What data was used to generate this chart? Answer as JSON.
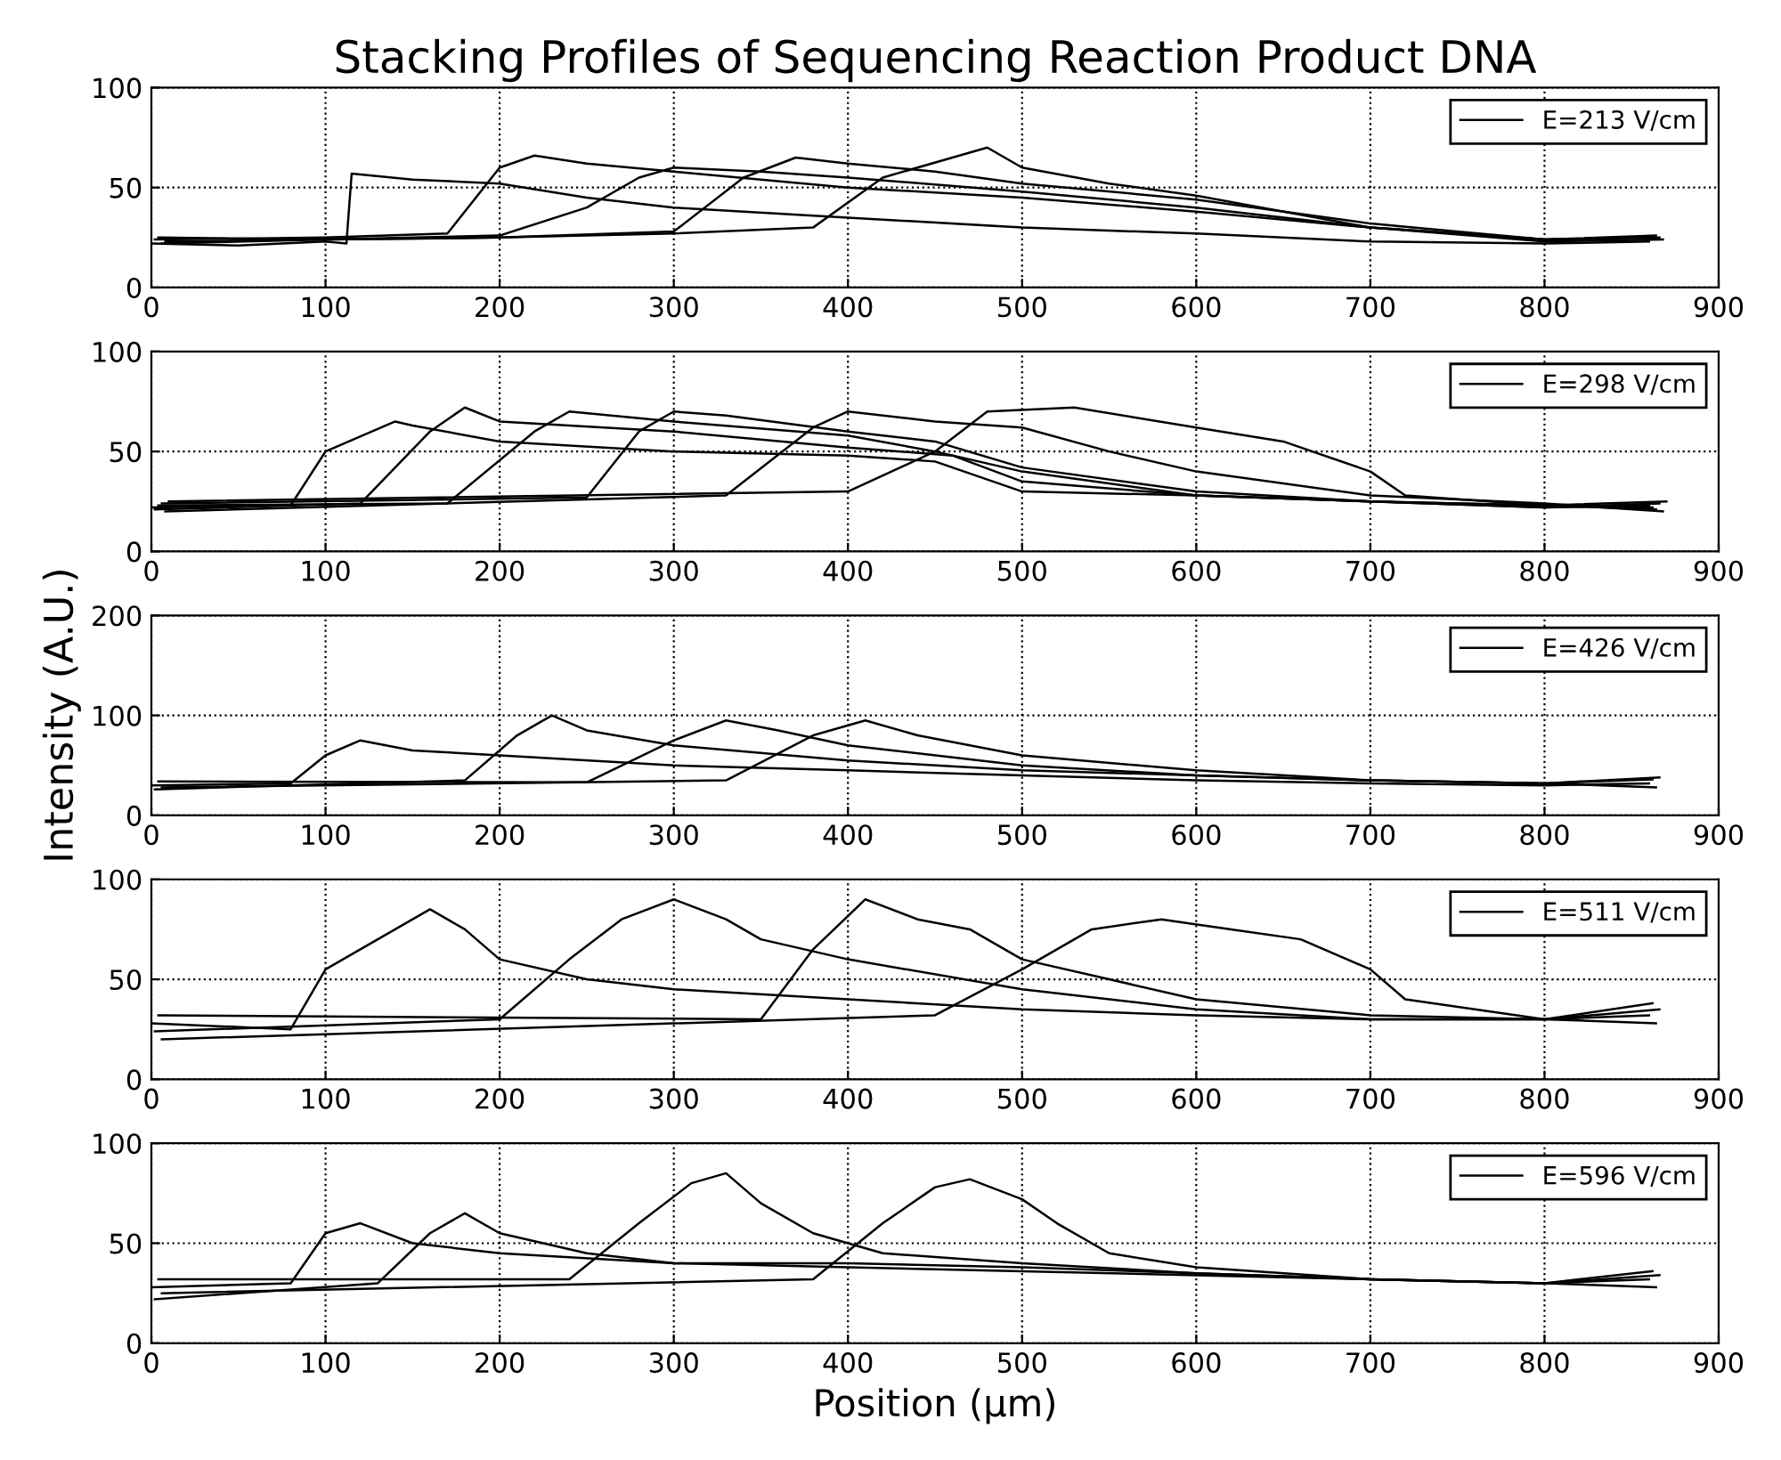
{
  "chart_data": [
    {
      "type": "line",
      "title": "Stacking Profiles of Sequencing Reaction Product DNA",
      "xlim": [
        0,
        900
      ],
      "xticks": [
        0,
        100,
        200,
        300,
        400,
        500,
        600,
        700,
        800,
        900
      ],
      "ylim": [
        0,
        100
      ],
      "yticks": [
        0,
        50,
        100
      ],
      "grid": true,
      "legend": "top right",
      "series": [
        {
          "name": "E=213 V/cm",
          "color": "#000000",
          "x": [
            0,
            50,
            100,
            112,
            115,
            150,
            200,
            250,
            300,
            400,
            500,
            600,
            700,
            800,
            860
          ],
          "values": [
            22,
            21,
            23,
            22,
            57,
            54,
            52,
            45,
            40,
            35,
            30,
            27,
            23,
            22,
            23
          ]
        },
        {
          "color": "#000000",
          "x": [
            2,
            100,
            170,
            200,
            220,
            250,
            300,
            400,
            500,
            600,
            700,
            800,
            862
          ],
          "values": [
            24,
            25,
            27,
            60,
            66,
            62,
            58,
            50,
            45,
            38,
            30,
            24,
            25
          ]
        },
        {
          "color": "#000000",
          "x": [
            4,
            100,
            200,
            250,
            280,
            300,
            350,
            400,
            500,
            600,
            700,
            800,
            864
          ],
          "values": [
            25,
            24,
            26,
            40,
            55,
            60,
            58,
            55,
            48,
            40,
            30,
            24,
            26
          ]
        },
        {
          "color": "#000000",
          "x": [
            6,
            100,
            200,
            300,
            340,
            370,
            400,
            450,
            500,
            600,
            700,
            800,
            866
          ],
          "values": [
            22,
            24,
            25,
            28,
            55,
            65,
            62,
            58,
            52,
            44,
            32,
            24,
            25
          ]
        },
        {
          "color": "#000000",
          "x": [
            8,
            100,
            200,
            300,
            380,
            420,
            480,
            500,
            550,
            600,
            700,
            800,
            868
          ],
          "values": [
            23,
            24,
            25,
            27,
            30,
            55,
            70,
            60,
            52,
            46,
            30,
            23,
            24
          ]
        }
      ]
    },
    {
      "type": "line",
      "xlim": [
        0,
        900
      ],
      "xticks": [
        0,
        100,
        200,
        300,
        400,
        500,
        600,
        700,
        800,
        900
      ],
      "ylim": [
        0,
        100
      ],
      "yticks": [
        0,
        50,
        100
      ],
      "grid": true,
      "legend": "top right",
      "series": [
        {
          "name": "E=298 V/cm",
          "color": "#000000",
          "x": [
            0,
            80,
            100,
            140,
            150,
            200,
            300,
            400,
            450,
            500,
            600,
            700,
            800,
            860
          ],
          "values": [
            22,
            23,
            50,
            65,
            63,
            55,
            50,
            48,
            45,
            30,
            28,
            25,
            22,
            23
          ]
        },
        {
          "color": "#000000",
          "x": [
            2,
            120,
            160,
            180,
            200,
            300,
            400,
            460,
            500,
            600,
            700,
            800,
            862
          ],
          "values": [
            21,
            24,
            60,
            72,
            65,
            60,
            52,
            48,
            35,
            28,
            25,
            23,
            22
          ]
        },
        {
          "color": "#000000",
          "x": [
            4,
            170,
            220,
            240,
            300,
            400,
            450,
            500,
            600,
            700,
            800,
            864
          ],
          "values": [
            23,
            24,
            60,
            70,
            65,
            58,
            50,
            40,
            28,
            25,
            23,
            21
          ]
        },
        {
          "color": "#000000",
          "x": [
            6,
            250,
            280,
            300,
            330,
            400,
            450,
            500,
            600,
            700,
            800,
            866
          ],
          "values": [
            24,
            27,
            60,
            70,
            68,
            60,
            55,
            42,
            30,
            25,
            22,
            24
          ]
        },
        {
          "color": "#000000",
          "x": [
            8,
            330,
            380,
            400,
            450,
            500,
            550,
            600,
            700,
            800,
            868
          ],
          "values": [
            20,
            28,
            62,
            70,
            65,
            62,
            50,
            40,
            28,
            24,
            20
          ]
        },
        {
          "color": "#000000",
          "x": [
            10,
            400,
            450,
            480,
            530,
            600,
            650,
            700,
            720,
            800,
            870
          ],
          "values": [
            25,
            30,
            50,
            70,
            72,
            62,
            55,
            40,
            28,
            23,
            25
          ]
        }
      ]
    },
    {
      "type": "line",
      "ylabel": "Intensity (A.U.)",
      "xlim": [
        0,
        900
      ],
      "xticks": [
        0,
        100,
        200,
        300,
        400,
        500,
        600,
        700,
        800,
        900
      ],
      "ylim": [
        0,
        200
      ],
      "yticks": [
        0,
        100,
        200
      ],
      "grid": true,
      "legend": "top right",
      "series": [
        {
          "name": "E=426 V/cm",
          "color": "#000000",
          "x": [
            0,
            80,
            100,
            120,
            150,
            200,
            300,
            400,
            500,
            600,
            700,
            800,
            860
          ],
          "values": [
            30,
            32,
            60,
            75,
            65,
            60,
            50,
            45,
            40,
            35,
            32,
            30,
            32
          ]
        },
        {
          "color": "#000000",
          "x": [
            2,
            180,
            210,
            230,
            250,
            300,
            400,
            500,
            600,
            700,
            800,
            862
          ],
          "values": [
            26,
            35,
            80,
            100,
            85,
            70,
            55,
            45,
            40,
            35,
            32,
            36
          ]
        },
        {
          "color": "#000000",
          "x": [
            4,
            250,
            300,
            330,
            360,
            400,
            500,
            600,
            700,
            800,
            864
          ],
          "values": [
            34,
            33,
            75,
            95,
            85,
            70,
            50,
            40,
            35,
            32,
            28
          ]
        },
        {
          "color": "#000000",
          "x": [
            6,
            330,
            380,
            410,
            440,
            500,
            600,
            700,
            800,
            866
          ],
          "values": [
            28,
            35,
            80,
            95,
            80,
            60,
            45,
            35,
            32,
            38
          ]
        }
      ]
    },
    {
      "type": "line",
      "xlim": [
        0,
        900
      ],
      "xticks": [
        0,
        100,
        200,
        300,
        400,
        500,
        600,
        700,
        800,
        900
      ],
      "ylim": [
        0,
        100
      ],
      "yticks": [
        0,
        50,
        100
      ],
      "grid": true,
      "legend": "top right",
      "series": [
        {
          "name": "E=511 V/cm",
          "color": "#000000",
          "x": [
            0,
            80,
            100,
            130,
            160,
            180,
            200,
            250,
            300,
            400,
            500,
            600,
            700,
            800,
            860
          ],
          "values": [
            28,
            25,
            55,
            70,
            85,
            75,
            60,
            50,
            45,
            40,
            35,
            32,
            30,
            30,
            32
          ]
        },
        {
          "color": "#000000",
          "x": [
            2,
            200,
            240,
            270,
            300,
            330,
            350,
            400,
            500,
            600,
            700,
            800,
            862
          ],
          "values": [
            24,
            30,
            60,
            80,
            90,
            80,
            70,
            60,
            45,
            35,
            30,
            30,
            38
          ]
        },
        {
          "color": "#000000",
          "x": [
            4,
            350,
            380,
            410,
            440,
            470,
            500,
            550,
            600,
            700,
            800,
            864
          ],
          "values": [
            32,
            30,
            65,
            90,
            80,
            75,
            60,
            50,
            40,
            32,
            30,
            28
          ]
        },
        {
          "color": "#000000",
          "x": [
            6,
            450,
            500,
            540,
            580,
            620,
            660,
            700,
            720,
            800,
            866
          ],
          "values": [
            20,
            32,
            55,
            75,
            80,
            75,
            70,
            55,
            40,
            30,
            35
          ]
        }
      ]
    },
    {
      "type": "line",
      "xlabel": "Position (µm)",
      "xlim": [
        0,
        900
      ],
      "xticks": [
        0,
        100,
        200,
        300,
        400,
        500,
        600,
        700,
        800,
        900
      ],
      "ylim": [
        0,
        100
      ],
      "yticks": [
        0,
        50,
        100
      ],
      "grid": true,
      "legend": "top right",
      "series": [
        {
          "name": "E=596 V/cm",
          "color": "#000000",
          "x": [
            0,
            80,
            100,
            120,
            150,
            200,
            300,
            400,
            500,
            600,
            700,
            800,
            860
          ],
          "values": [
            28,
            30,
            55,
            60,
            50,
            45,
            40,
            40,
            38,
            35,
            32,
            30,
            32
          ]
        },
        {
          "color": "#000000",
          "x": [
            2,
            130,
            160,
            180,
            200,
            250,
            300,
            400,
            500,
            600,
            700,
            800,
            862
          ],
          "values": [
            22,
            30,
            55,
            65,
            55,
            45,
            40,
            38,
            36,
            34,
            32,
            30,
            36
          ]
        },
        {
          "color": "#000000",
          "x": [
            4,
            240,
            280,
            310,
            330,
            350,
            380,
            420,
            500,
            600,
            700,
            800,
            864
          ],
          "values": [
            32,
            32,
            60,
            80,
            85,
            70,
            55,
            45,
            40,
            35,
            32,
            30,
            28
          ]
        },
        {
          "color": "#000000",
          "x": [
            6,
            380,
            420,
            450,
            470,
            500,
            520,
            550,
            600,
            700,
            800,
            866
          ],
          "values": [
            25,
            32,
            60,
            78,
            82,
            72,
            60,
            45,
            38,
            32,
            30,
            34
          ]
        }
      ]
    }
  ]
}
